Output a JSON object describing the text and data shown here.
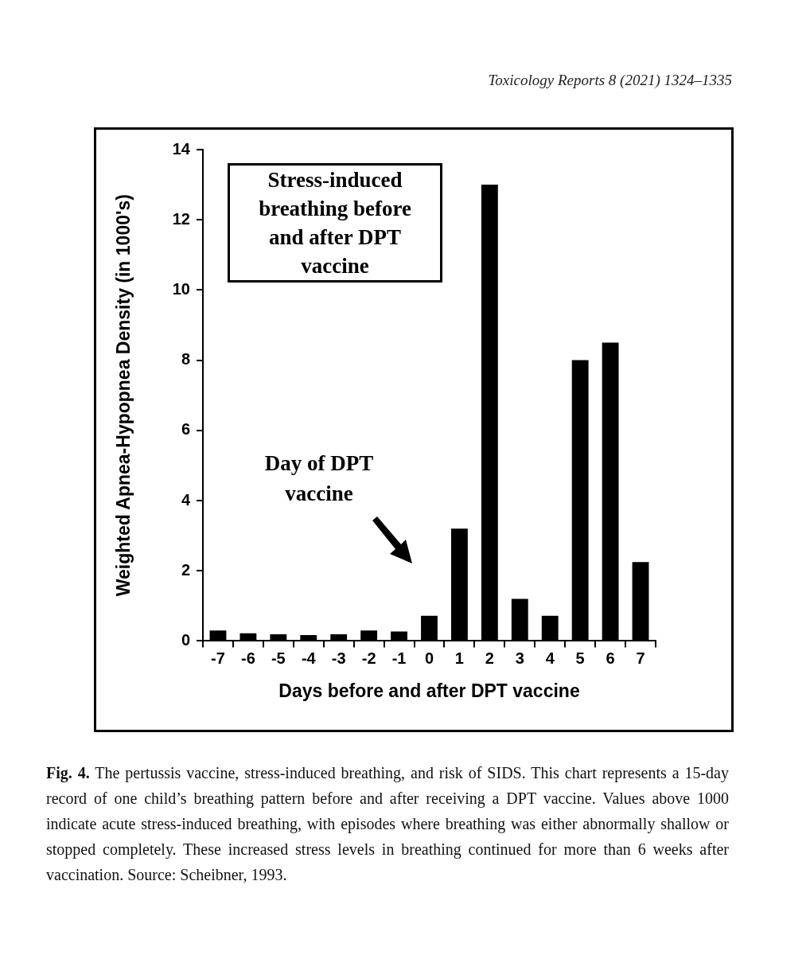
{
  "chart_data": {
    "type": "bar",
    "xlabel": "Days before and after DPT vaccine",
    "ylabel": "Weighted Apnea-Hypopnea Density (in 1000's)",
    "categories": [
      "-7",
      "-6",
      "-5",
      "-4",
      "-3",
      "-2",
      "-1",
      "0",
      "1",
      "2",
      "3",
      "4",
      "5",
      "6",
      "7"
    ],
    "values": [
      0.3,
      0.22,
      0.19,
      0.17,
      0.19,
      0.3,
      0.27,
      0.72,
      3.2,
      13.0,
      1.2,
      0.72,
      8.0,
      8.5,
      2.25
    ],
    "color": "#000000",
    "ylim": [
      0,
      14
    ],
    "yticks": [
      0,
      2,
      4,
      6,
      8,
      10,
      12,
      14
    ],
    "grid": false,
    "legend": false,
    "annotations": [
      "Toxicology Reports 8 (2021) 1324–1335",
      "Stress-induced breathing before and after DPT vaccine",
      "Day of DPT vaccine",
      "Fig. 4.",
      "The pertussis vaccine, stress-induced breathing, and risk of SIDS. This chart represents a 15-day record of one child’s breathing pattern before and after receiving a DPT vaccine. Values above 1000 indicate acute stress-induced breathing, with episodes where breathing was either abnormally shallow or stopped completely. These increased stress levels in breathing continued for more than 6 weeks after vaccination. Source: Scheibner, 1993."
    ]
  }
}
